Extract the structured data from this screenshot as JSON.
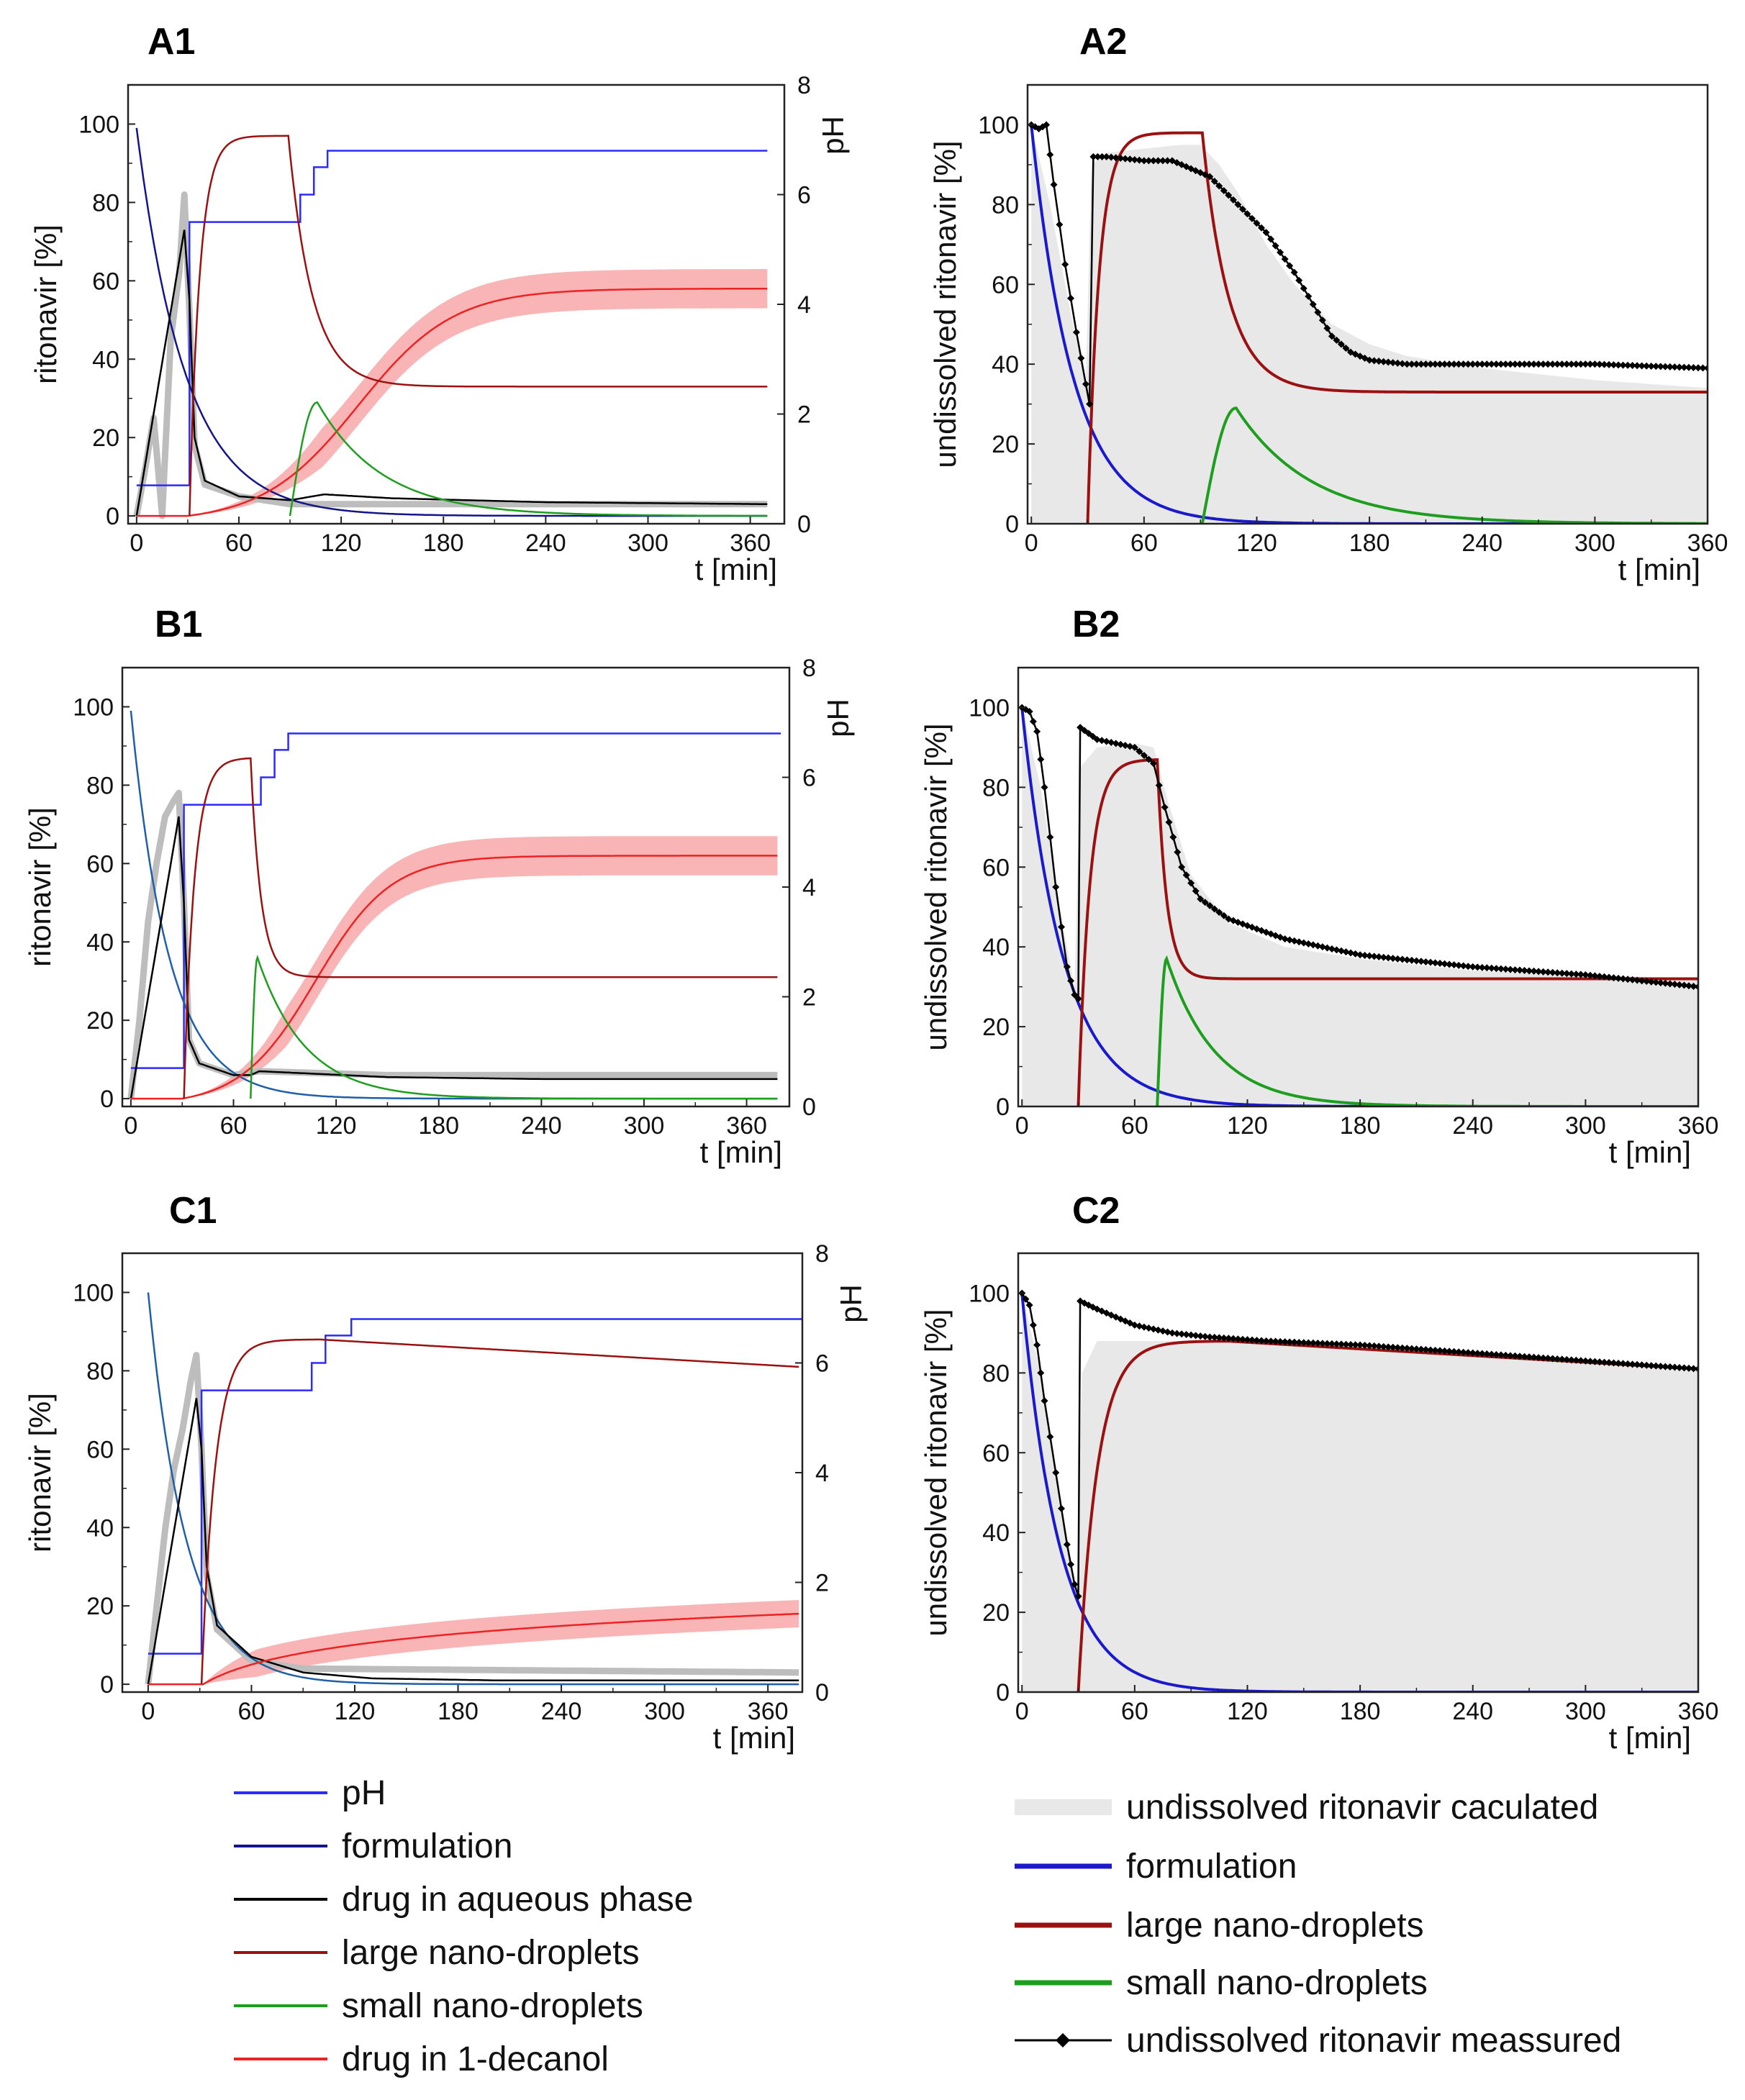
{
  "colors": {
    "ph": "#2b2bff",
    "formulation_left": "#14148c",
    "formulation_left_alt": "#1f5fa8",
    "formulation_right": "#1a1acc",
    "aqueous": "#000000",
    "large": "#9b1111",
    "small": "#1e9e1e",
    "decanol": "#ee2222",
    "decanol_band": "#f9b5b5",
    "gray_measured": "#bdbdbd",
    "calc_fill": "#e8e8e8"
  },
  "legend_left": {
    "items": [
      {
        "label": "pH",
        "color_key": "ph",
        "style": "thin"
      },
      {
        "label": "formulation",
        "color_key": "formulation_left",
        "style": "thin"
      },
      {
        "label": "drug in aqueous phase",
        "color_key": "aqueous",
        "style": "thin"
      },
      {
        "label": "large nano-droplets",
        "color_key": "large",
        "style": "thin"
      },
      {
        "label": "small nano-droplets",
        "color_key": "small",
        "style": "thin"
      },
      {
        "label": "drug in 1-decanol",
        "color_key": "decanol",
        "style": "thin"
      }
    ]
  },
  "legend_right": {
    "items": [
      {
        "label": "undissolved ritonavir caculated",
        "color_key": "calc_fill",
        "style": "band"
      },
      {
        "label": "formulation",
        "color_key": "formulation_right",
        "style": "thick"
      },
      {
        "label": "large nano-droplets",
        "color_key": "large",
        "style": "thick"
      },
      {
        "label": "small nano-droplets",
        "color_key": "small",
        "style": "thick"
      },
      {
        "label": "undissolved ritonavir meassured",
        "color_key": "aqueous",
        "style": "marker"
      }
    ]
  },
  "chart_data": [
    {
      "id": "A1",
      "label": "A1",
      "type": "line",
      "xlabel": "t [min]",
      "ylabel": "ritonavir [%]",
      "y2label": "pH",
      "xlim": [
        -5,
        380
      ],
      "xticks": [
        0,
        60,
        120,
        180,
        240,
        300,
        360
      ],
      "ylim": [
        -2,
        110
      ],
      "yticks": [
        0,
        20,
        40,
        60,
        80,
        100
      ],
      "y2lim": [
        0,
        8
      ],
      "y2ticks": [
        0,
        2,
        4,
        6,
        8
      ],
      "pH_steps": [
        [
          0,
          0.7
        ],
        [
          30,
          0.7
        ],
        [
          31,
          5.5
        ],
        [
          90,
          5.5
        ],
        [
          96,
          6.0
        ],
        [
          104,
          6.5
        ],
        [
          112,
          6.8
        ],
        [
          370,
          6.8
        ]
      ],
      "formulation": {
        "start": 99,
        "t0": 0,
        "k": 0.035
      },
      "aqueous": [
        [
          0,
          0
        ],
        [
          28,
          73
        ],
        [
          31,
          55
        ],
        [
          34,
          20
        ],
        [
          40,
          9
        ],
        [
          60,
          5
        ],
        [
          90,
          4
        ],
        [
          110,
          5.5
        ],
        [
          150,
          4.5
        ],
        [
          240,
          3.5
        ],
        [
          370,
          3
        ]
      ],
      "gray_measured": [
        [
          0,
          0
        ],
        [
          5,
          12
        ],
        [
          10,
          25
        ],
        [
          15,
          0
        ],
        [
          20,
          45
        ],
        [
          25,
          62
        ],
        [
          28,
          82
        ],
        [
          31,
          52
        ],
        [
          34,
          18
        ],
        [
          40,
          8
        ],
        [
          60,
          5
        ],
        [
          90,
          3
        ],
        [
          370,
          3
        ]
      ],
      "large": {
        "rise_start": 31,
        "tau_rise": 6,
        "plateau": 97,
        "peak_time": 89,
        "tau_decay": 14,
        "final": 33
      },
      "small": {
        "start": 90,
        "peak": 29,
        "peak_time": 106,
        "tau_decay": 38
      },
      "decanol": {
        "start": 30,
        "initial": 0,
        "end": 58,
        "sigmoid_mid": 130,
        "sigmoid_width": 28
      },
      "decanol_band_width": 5
    },
    {
      "id": "A2",
      "label": "A2",
      "type": "line",
      "xlabel": "t [min]",
      "ylabel": "undissolved ritonavir [%]",
      "xlim": [
        -2,
        360
      ],
      "xticks": [
        0,
        60,
        120,
        180,
        240,
        300,
        360
      ],
      "ylim": [
        0,
        110
      ],
      "yticks": [
        0,
        20,
        40,
        60,
        80,
        100
      ],
      "formulation": {
        "start": 100,
        "t0": 0,
        "k": 0.045
      },
      "large": {
        "rise_start": 30,
        "tau_rise": 6,
        "plateau": 98,
        "peak_time": 91,
        "tau_decay": 14,
        "final": 33
      },
      "small": {
        "start": 91,
        "peak": 29,
        "peak_time": 109,
        "tau_decay": 40
      },
      "measured": [
        [
          0,
          100
        ],
        [
          4,
          99
        ],
        [
          8,
          100
        ],
        [
          12,
          85
        ],
        [
          18,
          65
        ],
        [
          24,
          48
        ],
        [
          29,
          35
        ],
        [
          31,
          30
        ],
        [
          33,
          92
        ],
        [
          40,
          92
        ],
        [
          60,
          91
        ],
        [
          75,
          91
        ],
        [
          85,
          89
        ],
        [
          95,
          87
        ],
        [
          110,
          80
        ],
        [
          125,
          73
        ],
        [
          140,
          63
        ],
        [
          150,
          55
        ],
        [
          160,
          47
        ],
        [
          170,
          43
        ],
        [
          180,
          41
        ],
        [
          200,
          40
        ],
        [
          240,
          40
        ],
        [
          300,
          40
        ],
        [
          360,
          39
        ]
      ],
      "calc": [
        [
          0,
          100
        ],
        [
          10,
          80
        ],
        [
          20,
          55
        ],
        [
          29,
          35
        ],
        [
          32,
          90
        ],
        [
          40,
          93
        ],
        [
          60,
          94
        ],
        [
          80,
          95
        ],
        [
          90,
          95
        ],
        [
          100,
          90
        ],
        [
          110,
          83
        ],
        [
          125,
          70
        ],
        [
          140,
          60
        ],
        [
          160,
          50
        ],
        [
          180,
          45
        ],
        [
          200,
          42
        ],
        [
          240,
          39
        ],
        [
          300,
          36
        ],
        [
          360,
          34
        ]
      ]
    },
    {
      "id": "B1",
      "label": "B1",
      "type": "line",
      "xlabel": "t [min]",
      "ylabel": "ritonavir [%]",
      "y2label": "pH",
      "xlim": [
        -5,
        385
      ],
      "xticks": [
        0,
        60,
        120,
        180,
        240,
        300,
        360
      ],
      "ylim": [
        -2,
        110
      ],
      "yticks": [
        0,
        20,
        40,
        60,
        80,
        100
      ],
      "y2lim": [
        0,
        8
      ],
      "y2ticks": [
        0,
        2,
        4,
        6,
        8
      ],
      "pH_steps": [
        [
          0,
          0.7
        ],
        [
          30,
          0.7
        ],
        [
          31,
          5.5
        ],
        [
          70,
          5.5
        ],
        [
          76,
          6.0
        ],
        [
          84,
          6.5
        ],
        [
          92,
          6.8
        ],
        [
          380,
          6.8
        ]
      ],
      "formulation": {
        "start": 99,
        "t0": 0,
        "k": 0.045
      },
      "aqueous": [
        [
          0,
          0
        ],
        [
          28,
          72
        ],
        [
          31,
          50
        ],
        [
          34,
          15
        ],
        [
          40,
          9
        ],
        [
          60,
          6
        ],
        [
          70,
          6
        ],
        [
          75,
          7
        ],
        [
          100,
          6.5
        ],
        [
          150,
          5.5
        ],
        [
          240,
          5
        ],
        [
          380,
          5
        ]
      ],
      "gray_measured": [
        [
          0,
          0
        ],
        [
          5,
          20
        ],
        [
          10,
          45
        ],
        [
          15,
          60
        ],
        [
          20,
          72
        ],
        [
          25,
          76
        ],
        [
          28,
          78
        ],
        [
          31,
          50
        ],
        [
          34,
          15
        ],
        [
          40,
          9
        ],
        [
          60,
          6
        ],
        [
          75,
          7
        ],
        [
          150,
          6
        ],
        [
          380,
          6
        ]
      ],
      "large": {
        "rise_start": 31,
        "tau_rise": 6,
        "plateau": 87,
        "peak_time": 70,
        "tau_decay": 6,
        "final": 31
      },
      "small": {
        "start": 70,
        "peak": 36,
        "peak_time": 74,
        "tau_decay": 28
      },
      "decanol": {
        "start": 30,
        "initial": 0,
        "end": 62,
        "sigmoid_mid": 108,
        "sigmoid_width": 22
      },
      "decanol_band_width": 5
    },
    {
      "id": "B2",
      "label": "B2",
      "type": "line",
      "xlabel": "t [min]",
      "ylabel": "undissolved ritonavir [%]",
      "xlim": [
        -2,
        360
      ],
      "xticks": [
        0,
        60,
        120,
        180,
        240,
        300,
        360
      ],
      "ylim": [
        0,
        110
      ],
      "yticks": [
        0,
        20,
        40,
        60,
        80,
        100
      ],
      "formulation": {
        "start": 100,
        "t0": 0,
        "k": 0.045
      },
      "large": {
        "rise_start": 30,
        "tau_rise": 6,
        "plateau": 87,
        "peak_time": 72,
        "tau_decay": 5,
        "final": 32
      },
      "small": {
        "start": 72,
        "peak": 37,
        "peak_time": 77,
        "tau_decay": 26
      },
      "measured": [
        [
          0,
          100
        ],
        [
          4,
          99
        ],
        [
          8,
          94
        ],
        [
          12,
          80
        ],
        [
          18,
          55
        ],
        [
          24,
          35
        ],
        [
          28,
          28
        ],
        [
          30,
          27
        ],
        [
          31,
          95
        ],
        [
          40,
          92
        ],
        [
          60,
          90
        ],
        [
          70,
          86
        ],
        [
          76,
          75
        ],
        [
          85,
          60
        ],
        [
          95,
          52
        ],
        [
          110,
          47
        ],
        [
          140,
          42
        ],
        [
          180,
          38
        ],
        [
          240,
          35
        ],
        [
          300,
          33
        ],
        [
          360,
          30
        ]
      ],
      "calc": [
        [
          0,
          100
        ],
        [
          10,
          80
        ],
        [
          20,
          50
        ],
        [
          28,
          30
        ],
        [
          31,
          85
        ],
        [
          40,
          90
        ],
        [
          60,
          91
        ],
        [
          70,
          90
        ],
        [
          78,
          76
        ],
        [
          90,
          58
        ],
        [
          110,
          46
        ],
        [
          140,
          40
        ],
        [
          180,
          37
        ],
        [
          240,
          34
        ],
        [
          300,
          33
        ],
        [
          360,
          32
        ]
      ]
    },
    {
      "id": "C1",
      "label": "C1",
      "type": "line",
      "xlabel": "t [min]",
      "ylabel": "ritonavir [%]",
      "y2label": "pH",
      "xlim": [
        -15,
        380
      ],
      "xticks": [
        0,
        60,
        120,
        180,
        240,
        300,
        360
      ],
      "ylim": [
        -2,
        110
      ],
      "yticks": [
        0,
        20,
        40,
        60,
        80,
        100
      ],
      "y2lim": [
        0,
        8
      ],
      "y2ticks": [
        0,
        2,
        4,
        6,
        8
      ],
      "pH_steps": [
        [
          0,
          0.7
        ],
        [
          30,
          0.7
        ],
        [
          31,
          5.5
        ],
        [
          88,
          5.5
        ],
        [
          95,
          6.0
        ],
        [
          103,
          6.5
        ],
        [
          118,
          6.8
        ],
        [
          380,
          6.8
        ]
      ],
      "formulation": {
        "start": 100,
        "t0": 0,
        "k": 0.045
      },
      "aqueous": [
        [
          0,
          0
        ],
        [
          28,
          73
        ],
        [
          31,
          60
        ],
        [
          34,
          30
        ],
        [
          40,
          15
        ],
        [
          60,
          7
        ],
        [
          90,
          3
        ],
        [
          130,
          1.5
        ],
        [
          200,
          1
        ],
        [
          380,
          1
        ]
      ],
      "gray_measured": [
        [
          0,
          0
        ],
        [
          5,
          20
        ],
        [
          10,
          40
        ],
        [
          15,
          55
        ],
        [
          20,
          65
        ],
        [
          25,
          78
        ],
        [
          28,
          84
        ],
        [
          31,
          60
        ],
        [
          34,
          28
        ],
        [
          40,
          14
        ],
        [
          60,
          6
        ],
        [
          90,
          4
        ],
        [
          380,
          3
        ]
      ],
      "large": {
        "rise_start": 31,
        "tau_rise": 8,
        "plateau": 88,
        "peak_time": 380,
        "tau_decay": 1,
        "final": 81,
        "linear_decline_after": 100
      },
      "decanol": {
        "start": 32,
        "initial": 0,
        "end": 18,
        "sigmoid_mid": 0,
        "sigmoid_width": 0,
        "log_shape": true
      },
      "decanol_band_width": 3.5
    },
    {
      "id": "C2",
      "label": "C2",
      "type": "line",
      "xlabel": "t [min]",
      "ylabel": "undissolved ritonavir [%]",
      "xlim": [
        -2,
        360
      ],
      "xticks": [
        0,
        60,
        120,
        180,
        240,
        300,
        360
      ],
      "ylim": [
        0,
        110
      ],
      "yticks": [
        0,
        20,
        40,
        60,
        80,
        100
      ],
      "formulation": {
        "start": 100,
        "t0": 0,
        "k": 0.05
      },
      "large": {
        "rise_start": 30,
        "tau_rise": 10,
        "plateau": 88,
        "peak_time": 360,
        "tau_decay": 1,
        "final": 81,
        "linear_decline_after": 110
      },
      "measured": [
        [
          0,
          100
        ],
        [
          4,
          97
        ],
        [
          8,
          87
        ],
        [
          12,
          73
        ],
        [
          18,
          55
        ],
        [
          24,
          37
        ],
        [
          28,
          27
        ],
        [
          30,
          24
        ],
        [
          31,
          98
        ],
        [
          40,
          96
        ],
        [
          60,
          92
        ],
        [
          80,
          90
        ],
        [
          100,
          89
        ],
        [
          130,
          88
        ],
        [
          180,
          87
        ],
        [
          240,
          85
        ],
        [
          300,
          83
        ],
        [
          360,
          81
        ]
      ],
      "calc": [
        [
          0,
          100
        ],
        [
          10,
          80
        ],
        [
          20,
          50
        ],
        [
          29,
          25
        ],
        [
          32,
          80
        ],
        [
          40,
          88
        ],
        [
          60,
          88
        ],
        [
          100,
          88
        ],
        [
          180,
          87
        ],
        [
          240,
          85
        ],
        [
          300,
          83
        ],
        [
          360,
          81
        ]
      ]
    }
  ]
}
